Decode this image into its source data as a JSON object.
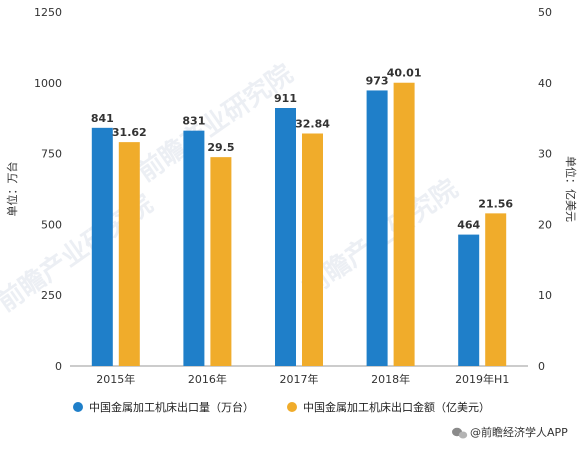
{
  "chart_data": {
    "type": "bar",
    "categories": [
      "2015年",
      "2016年",
      "2017年",
      "2018年",
      "2019年H1"
    ],
    "series": [
      {
        "name": "中国金属加工机床出口量（万台）",
        "axis": "left",
        "color": "#1f7fc9",
        "values": [
          841,
          831,
          911,
          973,
          464
        ],
        "labels": [
          "841",
          "831",
          "911",
          "973",
          "464"
        ]
      },
      {
        "name": "中国金属加工机床出口金额（亿美元）",
        "axis": "right",
        "color": "#f0ac2b",
        "values": [
          31.62,
          29.5,
          32.84,
          40.01,
          21.56
        ],
        "labels": [
          "31.62",
          "29.5",
          "32.84",
          "40.01",
          "21.56"
        ]
      }
    ],
    "left_axis": {
      "label": "单位：万台",
      "ylim": [
        0,
        1250
      ],
      "ticks": [
        "0",
        "250",
        "500",
        "750",
        "1000",
        "1250"
      ]
    },
    "right_axis": {
      "label": "单位：亿美元",
      "ylim": [
        0,
        50
      ],
      "ticks": [
        "0",
        "10",
        "20",
        "30",
        "40",
        "50"
      ]
    },
    "legend_position": "bottom",
    "grid": false
  },
  "footer": {
    "source_logo_icon": "wechat-icon",
    "source_text": "@前瞻经济学人APP"
  },
  "watermark": {
    "text": "前瞻产业研究院"
  }
}
